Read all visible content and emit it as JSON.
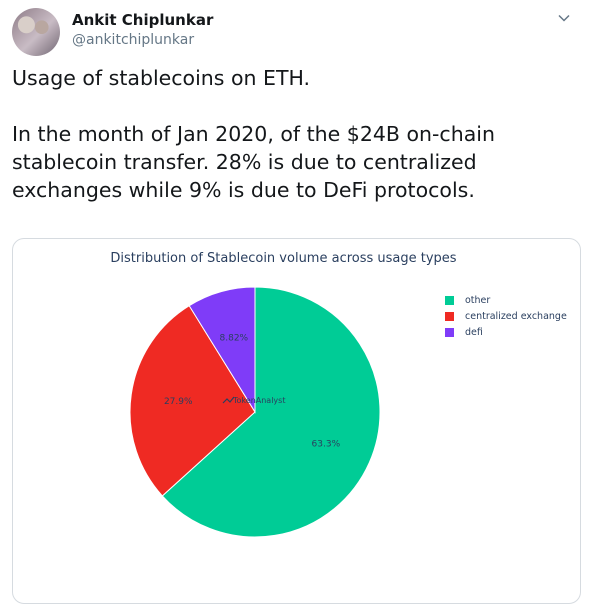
{
  "tweet": {
    "display_name": "Ankit Chiplunkar",
    "handle": "@ankitchiplunkar",
    "text": "Usage of stablecoins on ETH.\n\nIn the month of Jan 2020, of the $24B on-chain stablecoin transfer. 28% is due to centralized exchanges while 9% is due to DeFi protocols."
  },
  "icons": {
    "avatar": "avatar-photo",
    "menu": "chevron-down-icon",
    "watermark": "tokenanalyst-logo-icon"
  },
  "chart": {
    "watermark_text": "TokenAnalyst"
  },
  "chart_data": {
    "type": "pie",
    "title": "Distribution of Stablecoin volume across usage types",
    "legend_position": "top-right",
    "slices": [
      {
        "label": "other",
        "value": 63.3,
        "display": "63.3%",
        "color": "#00cc96"
      },
      {
        "label": "centralized exchange",
        "value": 27.9,
        "display": "27.9%",
        "color": "#ef2a23"
      },
      {
        "label": "defi",
        "value": 8.82,
        "display": "8.82%",
        "color": "#7f3cf8"
      }
    ]
  }
}
